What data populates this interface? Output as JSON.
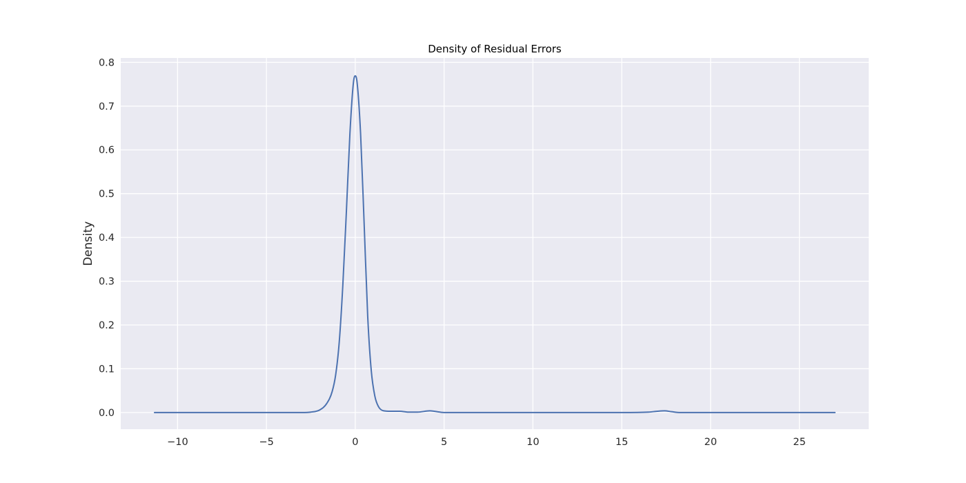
{
  "chart_data": {
    "type": "line",
    "title": "Density of Residual Errors",
    "xlabel": "",
    "ylabel": "Density",
    "xlim": [
      -13.2,
      28.9
    ],
    "ylim": [
      -0.038,
      0.81
    ],
    "xticks": [
      -10,
      -5,
      0,
      5,
      10,
      15,
      20,
      25
    ],
    "xtick_labels": [
      "−10",
      "−5",
      "0",
      "5",
      "10",
      "15",
      "20",
      "25"
    ],
    "yticks": [
      0.0,
      0.1,
      0.2,
      0.3,
      0.4,
      0.5,
      0.6,
      0.7,
      0.8
    ],
    "ytick_labels": [
      "0.0",
      "0.1",
      "0.2",
      "0.3",
      "0.4",
      "0.5",
      "0.6",
      "0.7",
      "0.8"
    ],
    "grid": true,
    "legend": "none",
    "colors": {
      "line": "#4c72b0",
      "plot_bg": "#eaeaf2",
      "grid": "#ffffff"
    },
    "series": [
      {
        "x": [
          -11.3,
          -5,
          -3,
          -2.5,
          -2,
          -1.6,
          -1.3,
          -1.1,
          -0.9,
          -0.7,
          -0.5,
          -0.3,
          -0.1,
          0.0,
          0.1,
          0.3,
          0.5,
          0.7,
          0.9,
          1.1,
          1.3,
          1.6,
          2.0,
          2.5,
          3.0,
          3.5,
          4.2,
          5.0,
          10,
          15,
          16.5,
          17.0,
          17.4,
          17.8,
          18.3,
          20,
          27.0
        ],
        "y": [
          0.0,
          0.0,
          0.0,
          0.001,
          0.006,
          0.021,
          0.048,
          0.087,
          0.162,
          0.291,
          0.459,
          0.638,
          0.755,
          0.769,
          0.755,
          0.637,
          0.431,
          0.22,
          0.096,
          0.038,
          0.014,
          0.004,
          0.003,
          0.003,
          0.001,
          0.001,
          0.004,
          0.0,
          0.0,
          0.0,
          0.001,
          0.003,
          0.004,
          0.002,
          0.0,
          0.0,
          0.0
        ]
      }
    ]
  }
}
